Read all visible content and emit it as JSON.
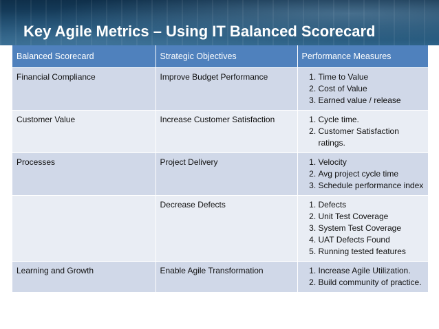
{
  "slide": {
    "title": "Key Agile Metrics – Using IT Balanced Scorecard"
  },
  "table": {
    "headers": [
      "Balanced Scorecard",
      "Strategic Objectives",
      "Performance Measures"
    ],
    "rows": [
      {
        "scorecard": "Financial Compliance",
        "objective": "Improve Budget Performance",
        "measures": [
          "Time to Value",
          "Cost of Value",
          "Earned value / release"
        ]
      },
      {
        "scorecard": "Customer Value",
        "objective": "Increase Customer Satisfaction",
        "measures": [
          "Cycle time.",
          "Customer Satisfaction ratings."
        ]
      },
      {
        "scorecard": "Processes",
        "objective": "Project Delivery",
        "measures": [
          "Velocity",
          "Avg project cycle time",
          "Schedule performance index"
        ]
      },
      {
        "scorecard": "",
        "objective": "Decrease Defects",
        "measures": [
          "Defects",
          "Unit Test Coverage",
          "System Test Coverage",
          "UAT Defects Found",
          "Running tested features"
        ]
      },
      {
        "scorecard": "Learning and Growth",
        "objective": "Enable Agile Transformation",
        "measures": [
          "Increase Agile Utilization.",
          "Build community of practice."
        ]
      }
    ]
  },
  "colors": {
    "header_band": "#1c4a6c",
    "table_header": "#4f81bd",
    "row_odd": "#d0d8e8",
    "row_even": "#e9edf4"
  }
}
